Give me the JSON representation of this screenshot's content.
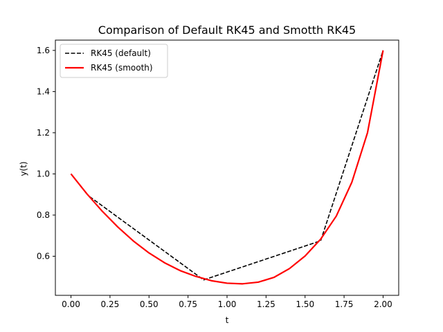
{
  "chart_data": {
    "type": "line",
    "title": "Comparison of Default RK45 and Smotth RK45",
    "xlabel": "t",
    "ylabel": "y(t)",
    "xlim": [
      -0.1,
      2.1
    ],
    "ylim": [
      0.41,
      1.65
    ],
    "xticks": [
      0.0,
      0.25,
      0.5,
      0.75,
      1.0,
      1.25,
      1.5,
      1.75,
      2.0
    ],
    "xtick_labels": [
      "0.00",
      "0.25",
      "0.50",
      "0.75",
      "1.00",
      "1.25",
      "1.50",
      "1.75",
      "2.00"
    ],
    "yticks": [
      0.6,
      0.8,
      1.0,
      1.2,
      1.4,
      1.6
    ],
    "ytick_labels": [
      "0.6",
      "0.8",
      "1.0",
      "1.2",
      "1.4",
      "1.6"
    ],
    "grid": false,
    "legend_position": "upper-left",
    "series": [
      {
        "name": "RK45 (default)",
        "style": "dashed",
        "color": "#000000",
        "x": [
          0.0,
          0.11,
          0.85,
          1.6,
          2.0
        ],
        "y": [
          1.0,
          0.895,
          0.485,
          0.675,
          1.6
        ]
      },
      {
        "name": "RK45 (smooth)",
        "style": "solid",
        "color": "#ff0000",
        "x": [
          0.0,
          0.1,
          0.2,
          0.3,
          0.4,
          0.5,
          0.6,
          0.7,
          0.8,
          0.9,
          1.0,
          1.1,
          1.2,
          1.3,
          1.4,
          1.5,
          1.6,
          1.7,
          1.8,
          1.9,
          2.0
        ],
        "y": [
          1.0,
          0.905,
          0.819,
          0.742,
          0.674,
          0.616,
          0.568,
          0.53,
          0.502,
          0.481,
          0.469,
          0.466,
          0.474,
          0.497,
          0.54,
          0.601,
          0.683,
          0.795,
          0.96,
          1.2,
          1.6
        ]
      }
    ]
  }
}
